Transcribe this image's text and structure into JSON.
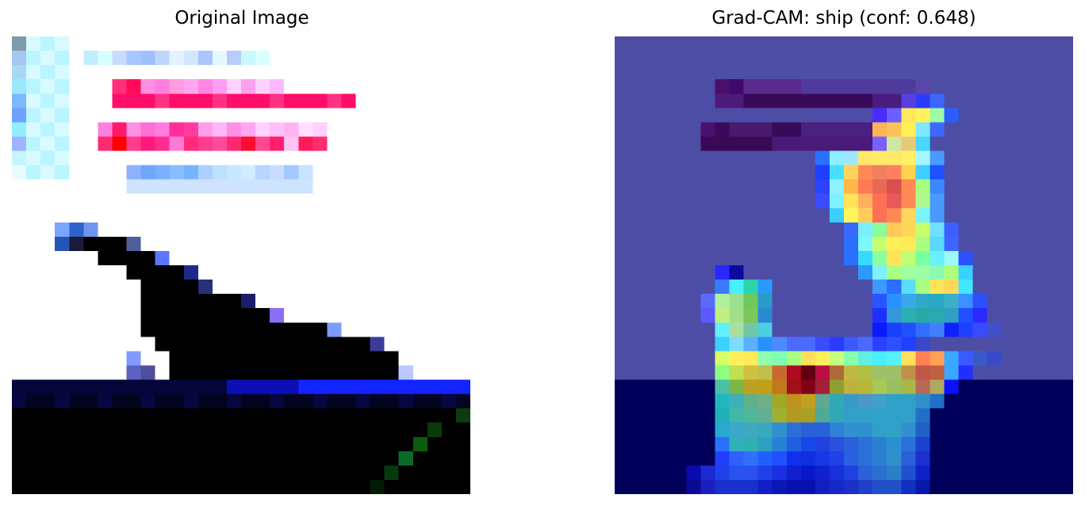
{
  "panels": {
    "left": {
      "title": "Original Image"
    },
    "right": {
      "title": "Grad-CAM: ship (conf: 0.648)"
    }
  },
  "colors": {
    "background": "#ffffff",
    "title_text": "#000000"
  }
}
